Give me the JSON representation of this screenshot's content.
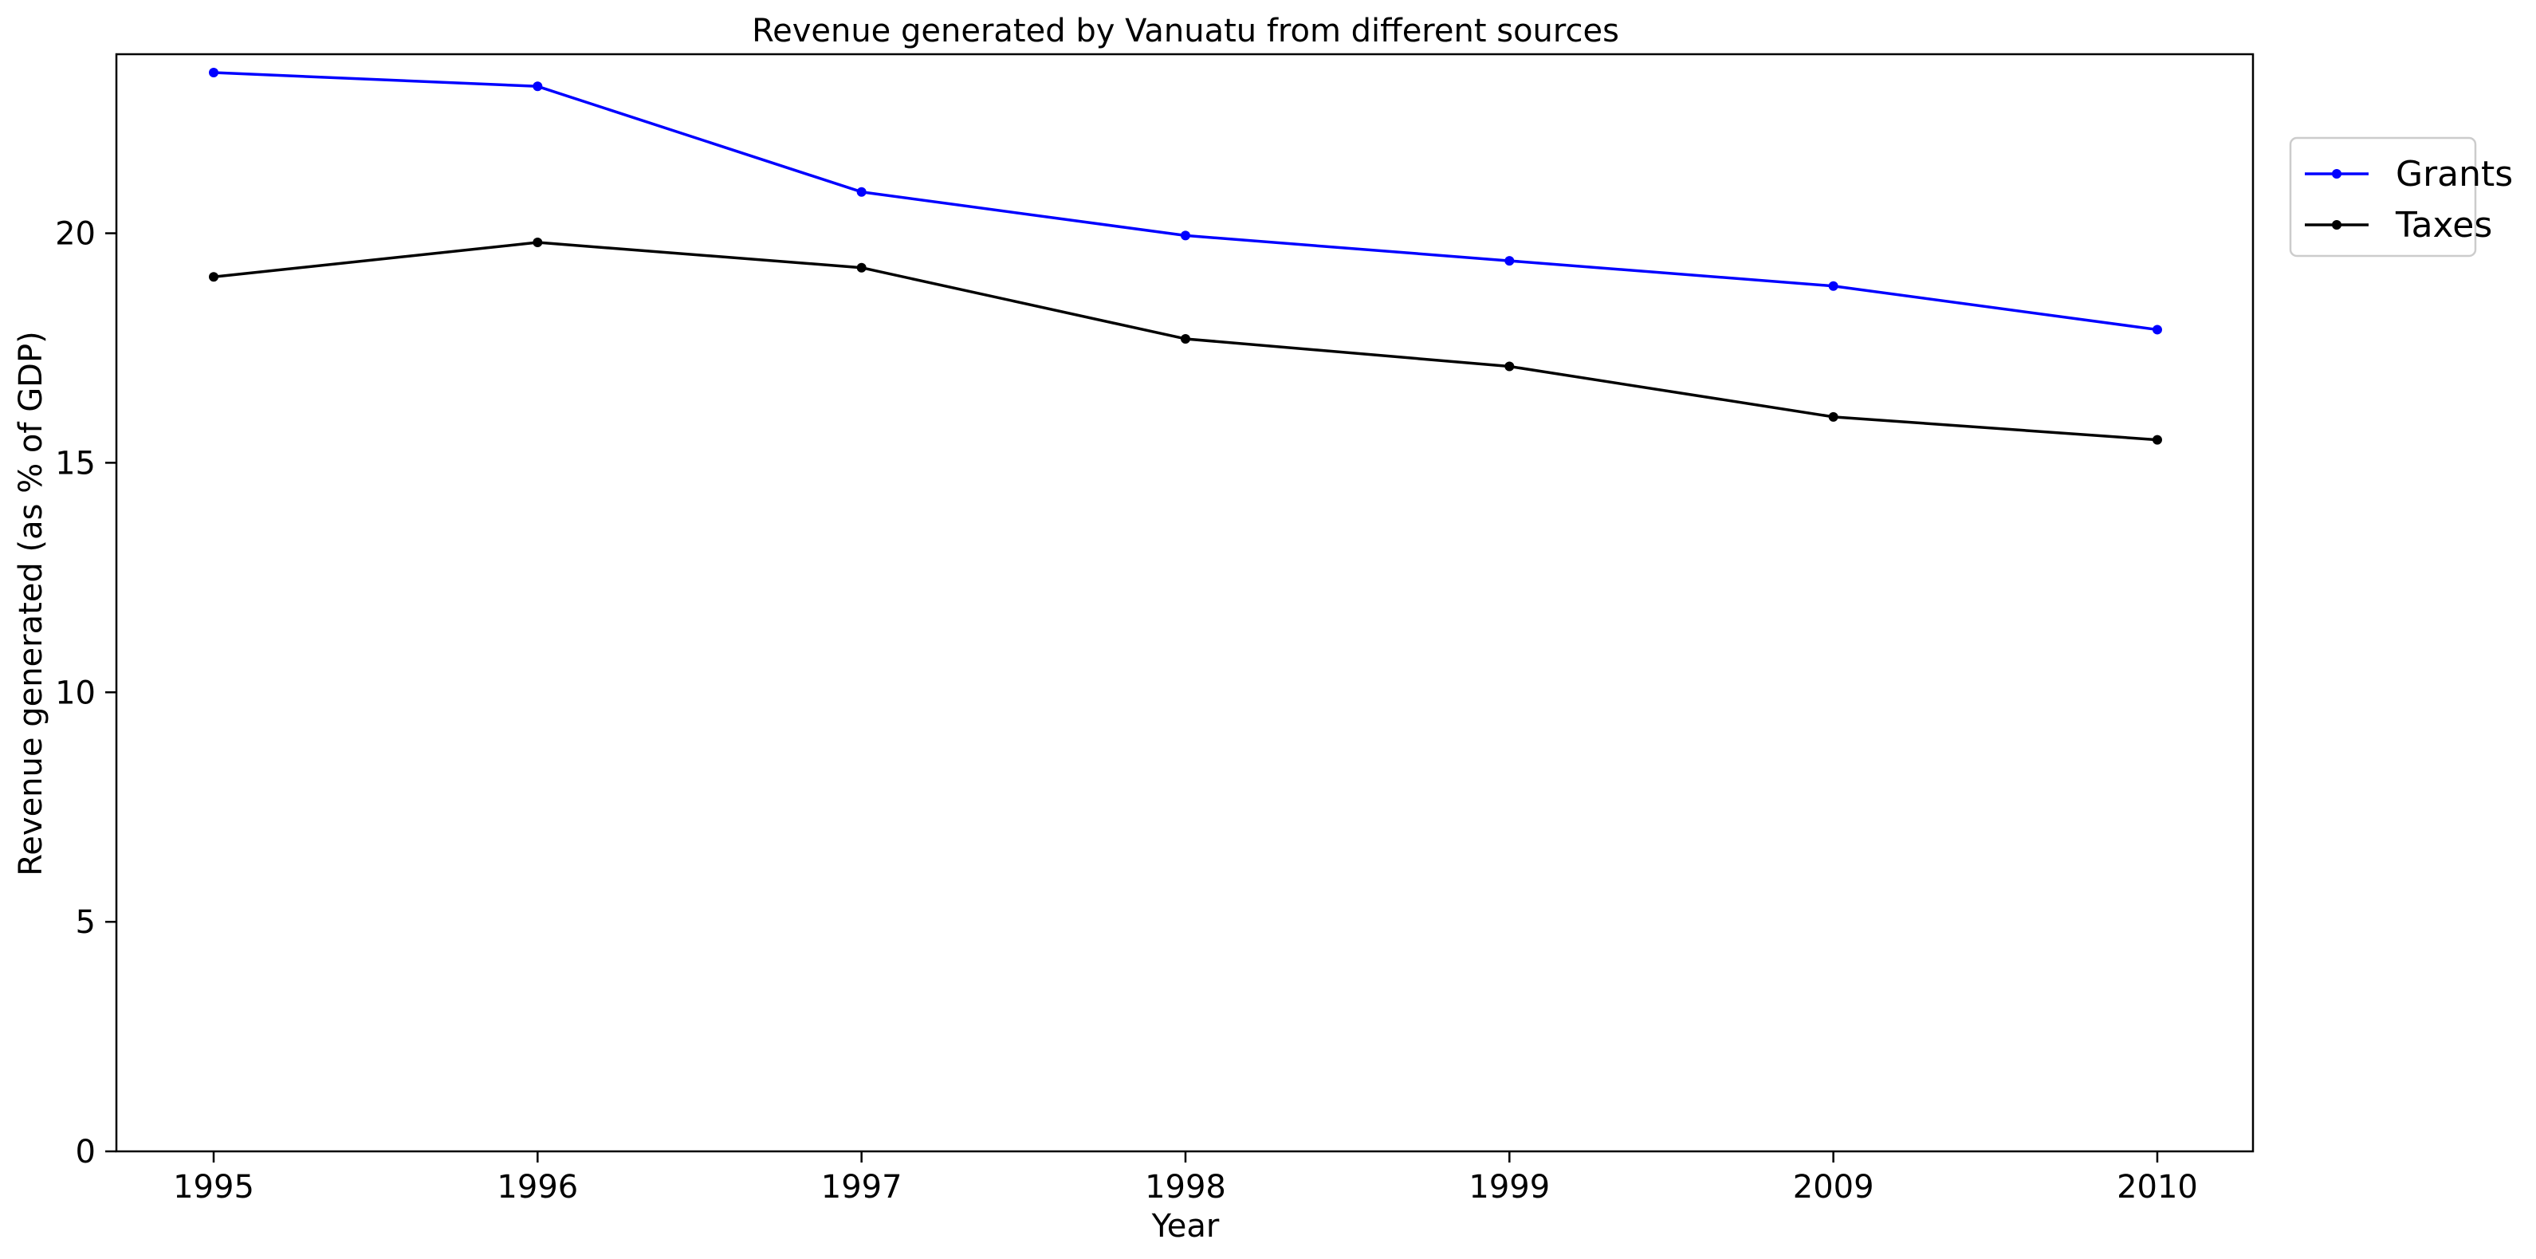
{
  "chart_data": {
    "type": "line",
    "title": "Revenue generated by Vanuatu from different sources",
    "xlabel": "Year",
    "ylabel": "Revenue generated (as % of GDP)",
    "categories": [
      "1995",
      "1996",
      "1997",
      "1998",
      "1999",
      "2009",
      "2010"
    ],
    "ylim": [
      0,
      23.9
    ],
    "yticks": [
      "0",
      "5",
      "10",
      "15",
      "20"
    ],
    "grid": false,
    "legend_position": "outside top-right",
    "series": [
      {
        "name": "Grants",
        "color": "#0000ff",
        "marker": "dot",
        "values": [
          23.5,
          23.2,
          20.9,
          19.95,
          19.4,
          18.85,
          17.9
        ]
      },
      {
        "name": "Taxes",
        "color": "#000000",
        "marker": "dot",
        "values": [
          19.05,
          19.8,
          19.25,
          17.7,
          17.1,
          16.0,
          15.5
        ]
      }
    ]
  }
}
